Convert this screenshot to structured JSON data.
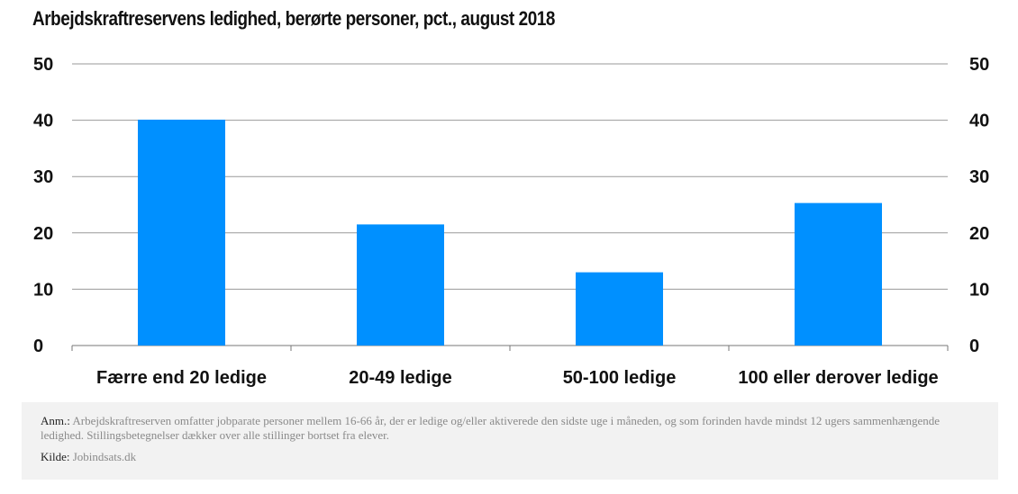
{
  "chart_data": {
    "type": "bar",
    "title": "Arbejdskraftreservens ledighed, berørte personer, pct., august 2018",
    "categories": [
      "Færre end 20 ledige",
      "20-49 ledige",
      "50-100 ledige",
      "100 eller derover ledige"
    ],
    "values": [
      40.1,
      21.5,
      13.0,
      25.3
    ],
    "ylim": [
      0,
      50
    ],
    "yticks": [
      "0",
      "10",
      "20",
      "30",
      "40",
      "50"
    ],
    "grid": true,
    "bar_color": "#0090ff"
  },
  "notes": {
    "anm_label": "Anm.:",
    "anm_text": "Arbejdskraftreserven omfatter jobparate personer mellem 16-66 år, der er ledige og/eller aktiverede den sidste uge i måneden, og som forinden havde mindst 12 ugers sammenhængende ledighed. Stillingsbetegnelser dækker over alle stillinger bortset fra elever.",
    "kilde_label": "Kilde:",
    "kilde_text": "Jobindsats.dk"
  }
}
